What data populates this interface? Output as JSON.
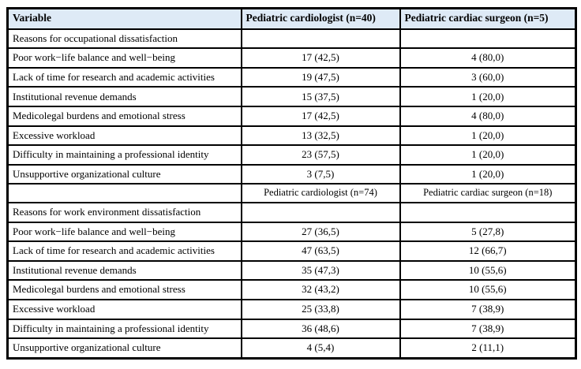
{
  "table": {
    "header_bg": "#deeaf6",
    "border_color": "#000000",
    "columns": [
      "variable",
      "pediatric_cardiologist",
      "pediatric_cardiac_surgeon"
    ],
    "rows": [
      {
        "c0": "Variable",
        "c1": "Pediatric cardiologist (n=40)",
        "c2": "Pediatric cardiac surgeon (n=5)"
      },
      {
        "c0": "Reasons for occupational dissatisfaction",
        "c1": "",
        "c2": ""
      },
      {
        "c0": "Poor work−life balance and well−being",
        "c1": "17 (42,5)",
        "c2": "4 (80,0)"
      },
      {
        "c0": "Lack of time for research and academic activities",
        "c1": "19 (47,5)",
        "c2": "3 (60,0)"
      },
      {
        "c0": "Institutional revenue demands",
        "c1": "15 (37,5)",
        "c2": "1 (20,0)"
      },
      {
        "c0": "Medicolegal burdens and emotional stress",
        "c1": "17 (42,5)",
        "c2": "4 (80,0)"
      },
      {
        "c0": "Excessive workload",
        "c1": "13 (32,5)",
        "c2": "1 (20,0)"
      },
      {
        "c0": "Difficulty in maintaining a professional identity",
        "c1": "23 (57,5)",
        "c2": "1 (20,0)"
      },
      {
        "c0": "Unsupportive organizational culture",
        "c1": "3 (7,5)",
        "c2": "1 (20,0)"
      },
      {
        "c0": "",
        "c1": "Pediatric cardiologist (n=74)",
        "c2": "Pediatric cardiac surgeon (n=18)"
      },
      {
        "c0": "Reasons for work environment dissatisfaction",
        "c1": "",
        "c2": ""
      },
      {
        "c0": "Poor work−life balance and well−being",
        "c1": "27 (36,5)",
        "c2": "5 (27,8)"
      },
      {
        "c0": "Lack of time for research and academic activities",
        "c1": "47 (63,5)",
        "c2": "12 (66,7)"
      },
      {
        "c0": "Institutional revenue demands",
        "c1": "35 (47,3)",
        "c2": "10 (55,6)"
      },
      {
        "c0": "Medicolegal burdens and emotional stress",
        "c1": "32 (43,2)",
        "c2": "10 (55,6)"
      },
      {
        "c0": "Excessive workload",
        "c1": "25 (33,8)",
        "c2": "7 (38,9)"
      },
      {
        "c0": "Difficulty in maintaining a professional identity",
        "c1": "36 (48,6)",
        "c2": "7 (38,9)"
      },
      {
        "c0": "Unsupportive organizational culture",
        "c1": "4 (5,4)",
        "c2": "2 (11,1)"
      }
    ]
  }
}
